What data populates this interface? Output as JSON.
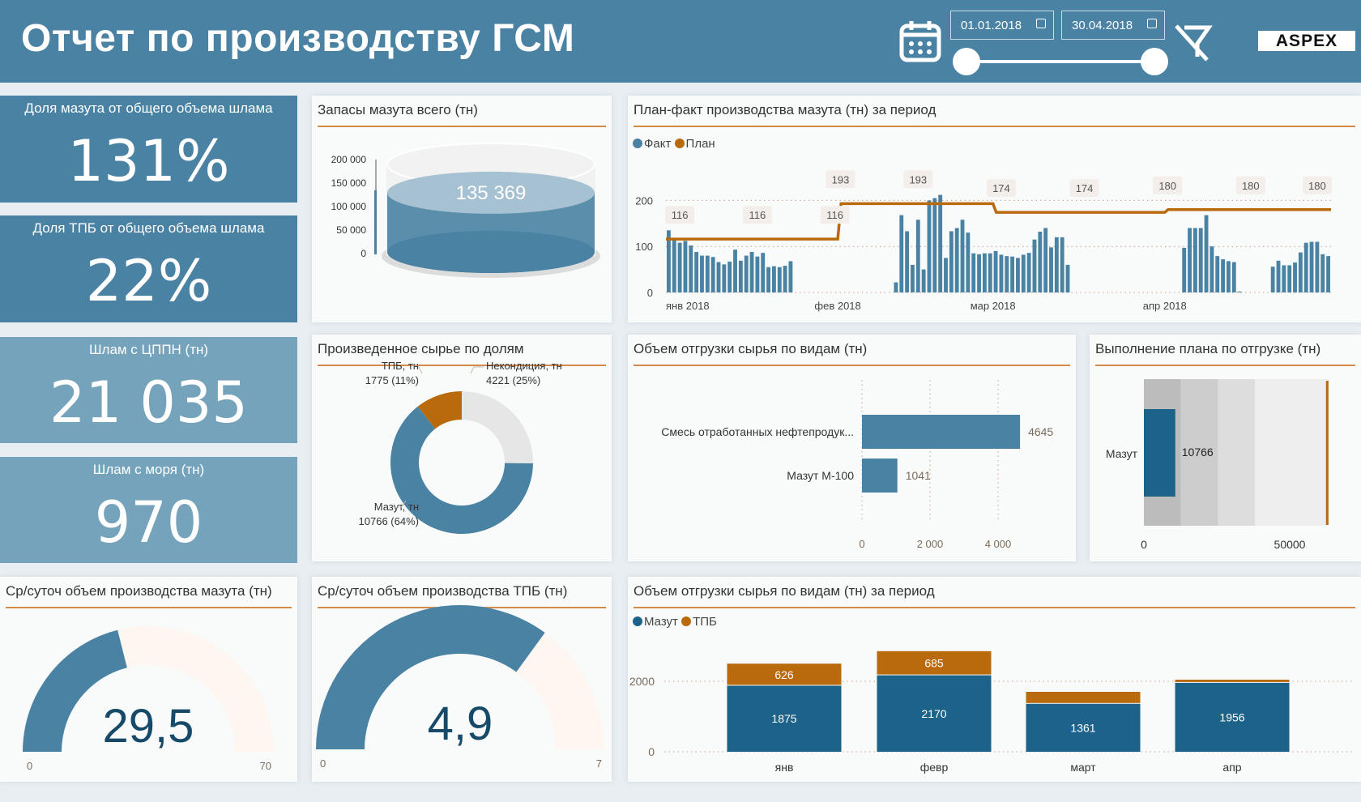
{
  "header": {
    "title": "Отчет по производству ГСМ",
    "date_from": "01.01.2018",
    "date_to": "30.04.2018",
    "logo": "ASPEX",
    "slider_range": [
      0,
      1
    ]
  },
  "kpis": [
    {
      "label": "Доля мазута от общего объема шлама",
      "value": "131%"
    },
    {
      "label": "Доля ТПБ от общего объема шлама",
      "value": "22%"
    },
    {
      "label": "Шлам с ЦППН (тн)",
      "value": "21 035"
    },
    {
      "label": "Шлам с моря (тн)",
      "value": "970"
    }
  ],
  "colors": {
    "header": "#4a82a3",
    "tile_dark": "#4a82a3",
    "tile_light": "#74a3bb",
    "blue": "#4a82a3",
    "dark_blue": "#1d6389",
    "orange": "#b86a0c",
    "gray": "#e6e6e6"
  },
  "chart_data": [
    {
      "id": "stock",
      "type": "cylinder",
      "title": "Запасы мазута всего (тн)",
      "value": 135369,
      "value_label": "135 369",
      "ylim": [
        0,
        200000
      ],
      "ticks": [
        "200 000",
        "150 000",
        "100 000",
        "50 000",
        "0"
      ]
    },
    {
      "id": "plan_fact",
      "type": "bar+line",
      "title": "План-факт производства мазута (тн) за период",
      "legend": [
        "Факт",
        "План"
      ],
      "ylim": [
        0,
        200
      ],
      "yticks": [
        "0",
        "100",
        "200"
      ],
      "xticks": [
        {
          "label": "янв 2018",
          "day": 0
        },
        {
          "label": "фев 2018",
          "day": 31
        },
        {
          "label": "мар 2018",
          "day": 59
        },
        {
          "label": "апр 2018",
          "day": 90
        }
      ],
      "fact": [
        135,
        118,
        108,
        112,
        102,
        88,
        80,
        80,
        77,
        66,
        61,
        67,
        93,
        69,
        80,
        88,
        78,
        86,
        55,
        57,
        55,
        58,
        68,
        0,
        0,
        0,
        0,
        0,
        0,
        0,
        0,
        0,
        0,
        0,
        0,
        0,
        0,
        0,
        0,
        0,
        0,
        22,
        168,
        133,
        60,
        158,
        50,
        200,
        205,
        212,
        75,
        133,
        140,
        158,
        130,
        85,
        83,
        85,
        85,
        90,
        82,
        79,
        78,
        75,
        82,
        86,
        115,
        132,
        140,
        98,
        120,
        120,
        60,
        0,
        0,
        0,
        0,
        0,
        0,
        0,
        0,
        0,
        0,
        0,
        0,
        0,
        0,
        0,
        0,
        0,
        0,
        0,
        0,
        97,
        140,
        140,
        140,
        168,
        100,
        79,
        72,
        68,
        66,
        2,
        0,
        0,
        0,
        0,
        0,
        56,
        69,
        59,
        59,
        65,
        87,
        108,
        110,
        110,
        83,
        79
      ],
      "plan_segments": [
        {
          "from": 0,
          "to": 30,
          "value": 116
        },
        {
          "from": 31,
          "to": 58,
          "value": 193
        },
        {
          "from": 59,
          "to": 89,
          "value": 174
        },
        {
          "from": 90,
          "to": 119,
          "value": 180
        }
      ],
      "plan_labels": [
        {
          "day": 2,
          "text": "116"
        },
        {
          "day": 16,
          "text": "116"
        },
        {
          "day": 30,
          "text": "116"
        },
        {
          "day": 31,
          "text": "193"
        },
        {
          "day": 45,
          "text": "193"
        },
        {
          "day": 60,
          "text": "174"
        },
        {
          "day": 75,
          "text": "174"
        },
        {
          "day": 90,
          "text": "180"
        },
        {
          "day": 105,
          "text": "180"
        },
        {
          "day": 117,
          "text": "180"
        }
      ]
    },
    {
      "id": "donut",
      "type": "pie",
      "title": "Произведенное сырье по долям",
      "slices": [
        {
          "name": "Некондиция, тн",
          "value": 4221,
          "label": "4221 (25%)",
          "color": "#e6e6e6"
        },
        {
          "name": "Мазут, тн",
          "value": 10766,
          "label": "10766 (64%)",
          "color": "#4a82a3"
        },
        {
          "name": "ТПБ, тн",
          "value": 1775,
          "label": "1775 (11%)",
          "color": "#b86a0c"
        }
      ]
    },
    {
      "id": "shipment",
      "type": "bar",
      "title": "Объем отгрузки сырья по видам (тн)",
      "categories": [
        "Смесь отработанных нефтепродук...",
        "Мазут М-100"
      ],
      "values": [
        4645,
        1041
      ],
      "value_labels": [
        "4645",
        "1041"
      ],
      "xticks": [
        "0",
        "2 000",
        "4 000"
      ],
      "xlim": [
        0,
        4645
      ]
    },
    {
      "id": "bullet",
      "type": "bullet",
      "title": "Выполнение плана по отгрузке (тн)",
      "category": "Мазут",
      "value": 10766,
      "value_label": "10766",
      "target": 63000,
      "bands": [
        12700,
        25400,
        38100,
        63500
      ],
      "xticks": [
        "0",
        "50000"
      ]
    },
    {
      "id": "period",
      "type": "stacked-bar",
      "title": "Объем отгрузки сырья по видам (тн) за период",
      "legend": [
        "Мазут",
        "ТПБ"
      ],
      "categories": [
        "янв",
        "февр",
        "март",
        "апр"
      ],
      "series": [
        {
          "name": "Мазут",
          "values": [
            1875,
            2170,
            1361,
            1956
          ],
          "labels": [
            "1875",
            "2170",
            "1361",
            "1956"
          ]
        },
        {
          "name": "ТПБ",
          "values": [
            626,
            685,
            340,
            90
          ],
          "labels": [
            "626",
            "685",
            "",
            ""
          ]
        }
      ],
      "yticks": [
        "0",
        "2000"
      ]
    }
  ],
  "gauges": [
    {
      "title": "Ср/суточ объем производства мазута (тн)",
      "value": 29.5,
      "value_label": "29,5",
      "min_label": "0",
      "max_label": "70",
      "max": 70
    },
    {
      "title": "Ср/суточ объем производства ТПБ (тн)",
      "value": 4.9,
      "value_label": "4,9",
      "min_label": "0",
      "max_label": "7",
      "max": 7
    }
  ]
}
